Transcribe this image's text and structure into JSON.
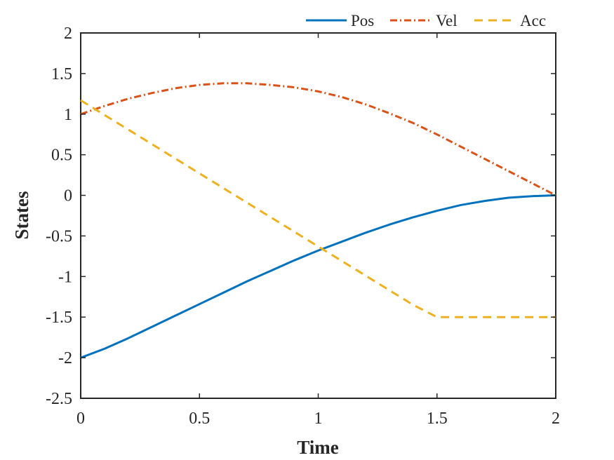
{
  "chart_data": {
    "type": "line",
    "title": "",
    "xlabel": "Time",
    "ylabel": "States",
    "xlim": [
      0,
      2
    ],
    "ylim": [
      -2.5,
      2
    ],
    "xticks": [
      0,
      0.5,
      1,
      1.5,
      2
    ],
    "xtick_labels": [
      "0",
      "0.5",
      "1",
      "1.5",
      "2"
    ],
    "yticks": [
      -2.5,
      -2,
      -1.5,
      -1,
      -0.5,
      0,
      0.5,
      1,
      1.5,
      2
    ],
    "ytick_labels": [
      "-2.5",
      "-2",
      "-1.5",
      "-1",
      "-0.5",
      "0",
      "0.5",
      "1",
      "1.5",
      "2"
    ],
    "grid": false,
    "legend_position": "top-right, outside above plot",
    "x": [
      0,
      0.1,
      0.2,
      0.3,
      0.4,
      0.5,
      0.6,
      0.7,
      0.8,
      0.9,
      1.0,
      1.1,
      1.2,
      1.3,
      1.4,
      1.5,
      1.6,
      1.7,
      1.8,
      1.9,
      2.0
    ],
    "series": [
      {
        "name": "Pos",
        "color": "#0072BD",
        "style": "solid",
        "values": [
          -2.0,
          -1.89,
          -1.76,
          -1.62,
          -1.48,
          -1.34,
          -1.2,
          -1.06,
          -0.93,
          -0.8,
          -0.68,
          -0.57,
          -0.46,
          -0.36,
          -0.27,
          -0.19,
          -0.12,
          -0.07,
          -0.03,
          -0.01,
          0.0
        ]
      },
      {
        "name": "Vel",
        "color": "#D95319",
        "style": "dashdot",
        "values": [
          1.0,
          1.1,
          1.19,
          1.26,
          1.32,
          1.36,
          1.38,
          1.38,
          1.36,
          1.33,
          1.28,
          1.21,
          1.12,
          1.01,
          0.89,
          0.75,
          0.6,
          0.45,
          0.3,
          0.15,
          0.0
        ]
      },
      {
        "name": "Acc",
        "color": "#EDB120",
        "style": "dashed",
        "values": [
          1.17,
          0.99,
          0.81,
          0.63,
          0.45,
          0.27,
          0.09,
          -0.09,
          -0.27,
          -0.45,
          -0.63,
          -0.81,
          -0.99,
          -1.17,
          -1.35,
          -1.5,
          -1.5,
          -1.5,
          -1.5,
          -1.5,
          -1.5
        ]
      }
    ]
  }
}
